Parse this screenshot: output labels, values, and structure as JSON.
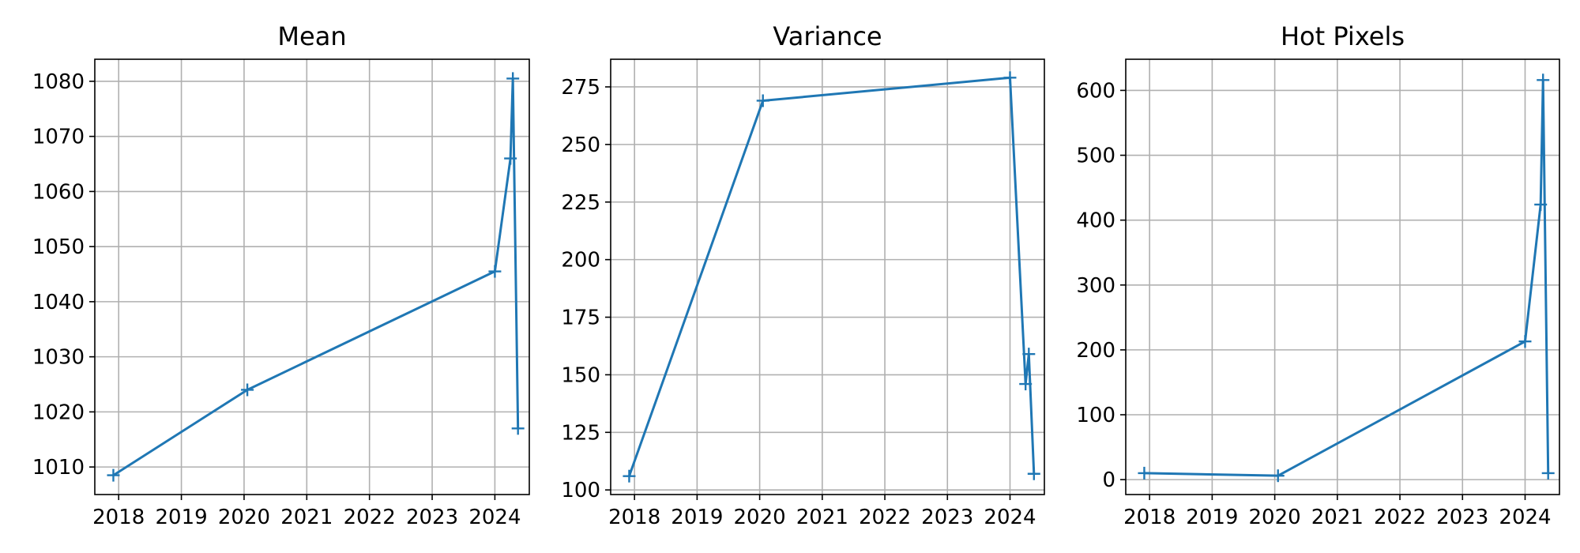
{
  "figure": {
    "line_color": "#1f77b4",
    "grid_color": "#b0b0b0",
    "marker": "plus"
  },
  "chart_data": [
    {
      "type": "line",
      "title": "Mean",
      "xlabel": "",
      "ylabel": "",
      "grid": true,
      "x_type": "date",
      "xlim": [
        "2017-08-15",
        "2024-07-20"
      ],
      "ylim": [
        1005,
        1084
      ],
      "x_ticks": [
        "2018",
        "2019",
        "2020",
        "2021",
        "2022",
        "2023",
        "2024"
      ],
      "y_ticks": [
        1010,
        1020,
        1030,
        1040,
        1050,
        1060,
        1070,
        1080
      ],
      "series": [
        {
          "x": [
            "2017-12-01",
            "2020-01-20",
            "2024-01-01",
            "2024-04-01",
            "2024-04-15",
            "2024-05-15"
          ],
          "y": [
            1008.5,
            1024.0,
            1045.5,
            1066.0,
            1080.5,
            1017.0
          ]
        }
      ]
    },
    {
      "type": "line",
      "title": "Variance",
      "xlabel": "",
      "ylabel": "",
      "grid": true,
      "x_type": "date",
      "xlim": [
        "2017-08-15",
        "2024-07-20"
      ],
      "ylim": [
        98,
        287
      ],
      "x_ticks": [
        "2018",
        "2019",
        "2020",
        "2021",
        "2022",
        "2023",
        "2024"
      ],
      "y_ticks": [
        100,
        125,
        150,
        175,
        200,
        225,
        250,
        275
      ],
      "series": [
        {
          "x": [
            "2017-12-01",
            "2020-01-20",
            "2024-01-01",
            "2024-04-01",
            "2024-04-20",
            "2024-05-20"
          ],
          "y": [
            106,
            269,
            279,
            146,
            159,
            107
          ]
        }
      ]
    },
    {
      "type": "line",
      "title": "Hot Pixels",
      "xlabel": "",
      "ylabel": "",
      "grid": true,
      "x_type": "date",
      "xlim": [
        "2017-08-15",
        "2024-07-20"
      ],
      "ylim": [
        -23,
        648
      ],
      "x_ticks": [
        "2018",
        "2019",
        "2020",
        "2021",
        "2022",
        "2023",
        "2024"
      ],
      "y_ticks": [
        0,
        100,
        200,
        300,
        400,
        500,
        600
      ],
      "series": [
        {
          "x": [
            "2017-12-01",
            "2020-01-20",
            "2024-01-01",
            "2024-04-01",
            "2024-04-15",
            "2024-05-15"
          ],
          "y": [
            10,
            6,
            213,
            424,
            616,
            10
          ]
        }
      ]
    }
  ]
}
